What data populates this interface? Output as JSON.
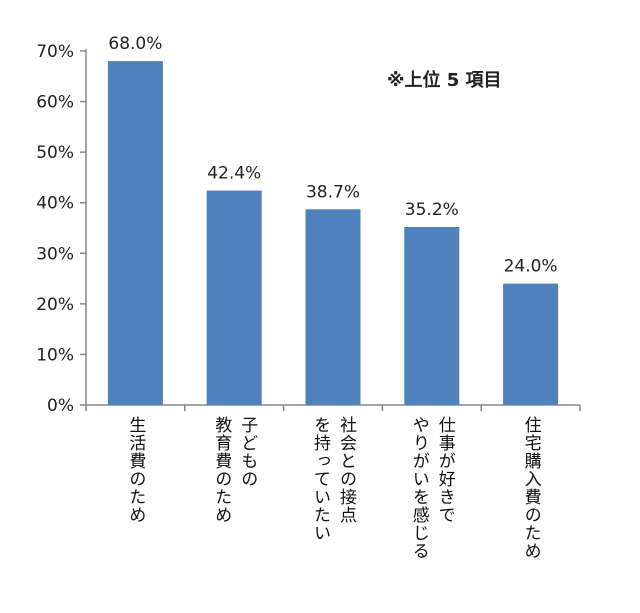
{
  "chart_data": {
    "type": "bar",
    "categories": [
      "生活費のため",
      "子どもの\n教育費のため",
      "社会との接点\nを持っていたい",
      "仕事が好きで\nやりがいを感じる",
      "住宅購入費のため"
    ],
    "values": [
      68.0,
      42.4,
      38.7,
      35.2,
      24.0
    ],
    "value_labels": [
      "68.0%",
      "42.4%",
      "38.7%",
      "35.2%",
      "24.0%"
    ],
    "y_ticks": [
      "0%",
      "10%",
      "20%",
      "30%",
      "40%",
      "50%",
      "60%",
      "70%"
    ],
    "ylim": [
      0,
      70
    ],
    "grid": false,
    "bar_color": "#4f81bd",
    "annotation": "※上位 5 項目"
  }
}
